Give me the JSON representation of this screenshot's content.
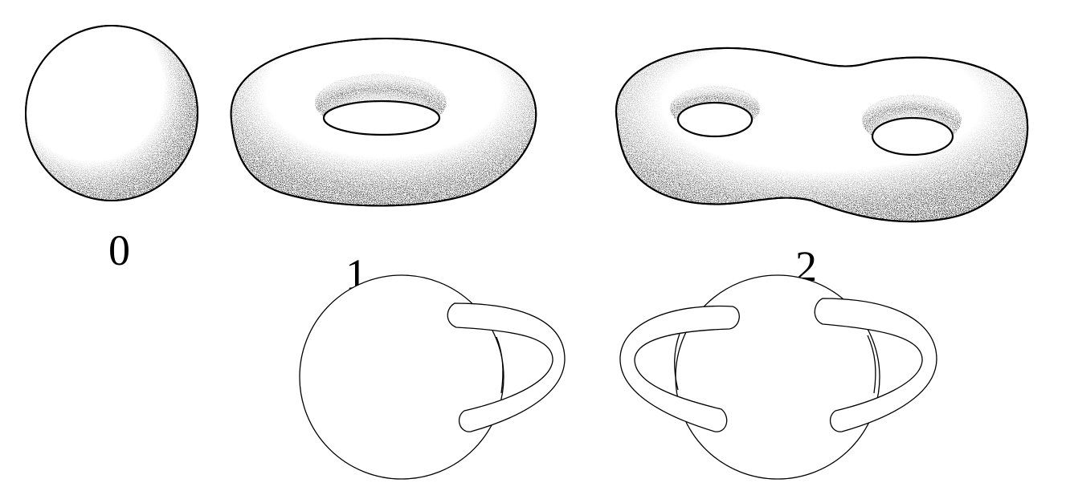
{
  "labels": {
    "genus_0": "0",
    "genus_1": "1",
    "genus_2": "2"
  },
  "colors": {
    "stroke": "#000000",
    "background": "#ffffff"
  }
}
